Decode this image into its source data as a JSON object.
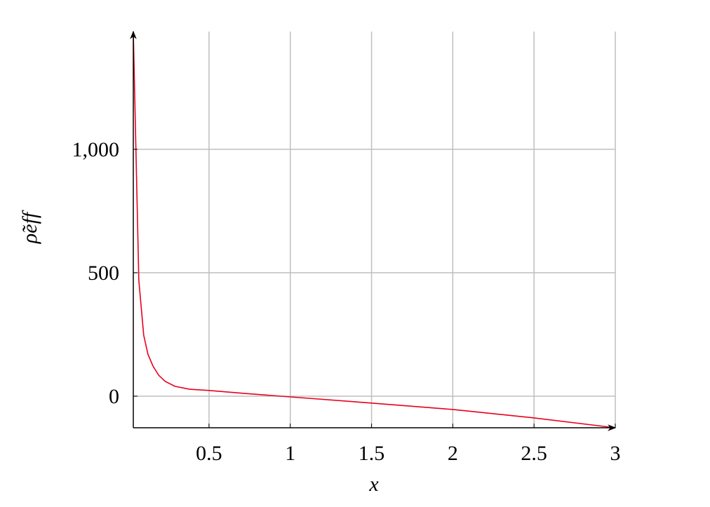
{
  "chart_data": {
    "type": "line",
    "x_label": "x",
    "y_label": "ρ̃eff",
    "x": [
      0.034,
      0.068,
      0.098,
      0.124,
      0.155,
      0.19,
      0.23,
      0.29,
      0.38,
      0.5,
      0.72,
      1,
      1.5,
      2,
      2.5,
      3
    ],
    "series": [
      {
        "name": "ρ̃eff",
        "color": "#e8001c",
        "values": [
          1477,
          469,
          247,
          170,
          122,
          85,
          60,
          40,
          28,
          23,
          11,
          -3,
          -28,
          -54,
          -88,
          -128
        ]
      }
    ],
    "xlim": [
      0.034,
      3
    ],
    "ylim": [
      -128,
      1477
    ],
    "xticks": [
      0.5,
      1,
      1.5,
      2,
      2.5,
      3
    ],
    "yticks": [
      0,
      500,
      {
        "value": 1000,
        "label": "1,000"
      }
    ],
    "grid": true
  }
}
